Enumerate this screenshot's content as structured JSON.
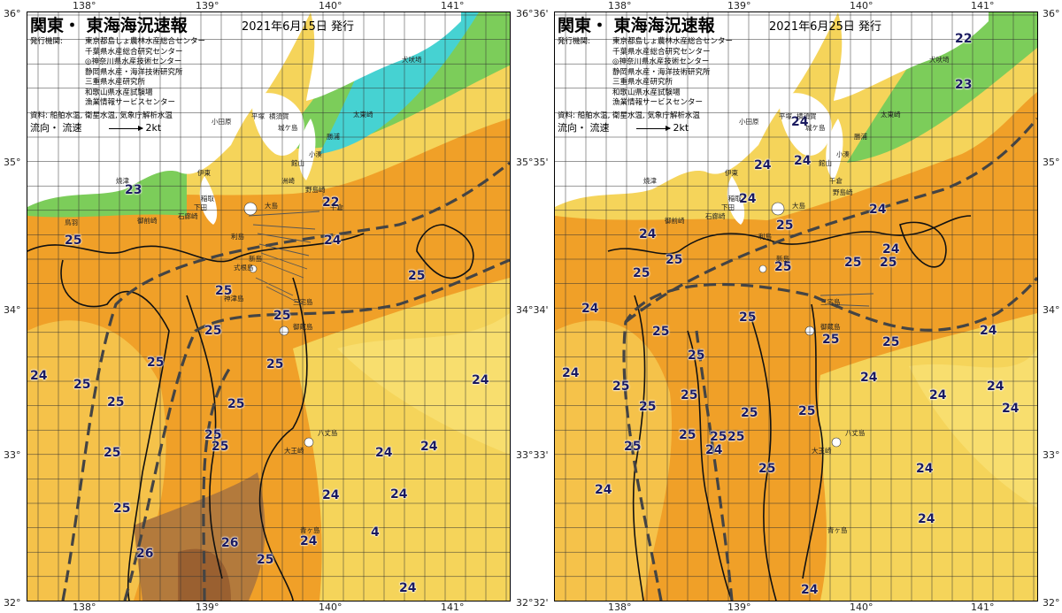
{
  "left": {
    "title": "関東・ 東海海況速報",
    "date": "2021年6月15日  発行",
    "issuers_label": "発行機関:",
    "issuers": [
      "東京都島しょ農林水産総合センター",
      "千葉県水産総合研究センター",
      "◎神奈川県水産技術センター",
      "静岡県水産・海洋技術研究所",
      "三重県水産研究所",
      "和歌山県水産試験場",
      "漁業情報サービスセンター"
    ],
    "sources": "資料: 船舶水温, 衛星水温, 気象庁解析水温",
    "legend": {
      "label": "流向・ 流速",
      "value": "2kt"
    },
    "lon_top": [
      "138°",
      "139°",
      "140°",
      "141°"
    ],
    "lon_bottom": [
      "138°",
      "139°",
      "140°",
      "141°"
    ],
    "lat_left": [
      "36°",
      "35°",
      "34°",
      "33°",
      "32°"
    ],
    "isotherms": [
      "23",
      "22",
      "24",
      "25",
      "25",
      "25",
      "25",
      "25",
      "25",
      "25",
      "24",
      "25",
      "25",
      "25",
      "25",
      "25",
      "24",
      "24",
      "24",
      "24",
      "24",
      "26",
      "26",
      "25",
      "25",
      "25",
      "24",
      "4",
      "24"
    ],
    "places": [
      "犬吠埼",
      "太東崎",
      "勝浦",
      "小湊",
      "館山",
      "洲崎",
      "野島崎",
      "平塚",
      "横須賀",
      "城ケ島",
      "大島",
      "利島",
      "新島",
      "式根島",
      "神津島",
      "三宅島",
      "御蔵島",
      "八丈島",
      "青ヶ島",
      "焼津",
      "御前崎",
      "伊東",
      "稲取",
      "下田",
      "石廊崎",
      "大王崎",
      "小田原",
      "千倉",
      "鳥羽"
    ]
  },
  "right": {
    "title": "関東・ 東海海況速報",
    "date": "2021年6月25日  発行",
    "issuers_label": "発行機関:",
    "issuers": [
      "東京都島しょ農林水産総合センター",
      "千葉県水産総合研究センター",
      "◎神奈川県水産技術センター",
      "静岡県水産・海洋技術研究所",
      "三重県水産研究所",
      "和歌山県水産試験場",
      "漁業情報サービスセンター"
    ],
    "sources": "資料: 船舶水温, 衛星水温, 気象庁解析水温",
    "legend": {
      "label": "流向・ 流速",
      "value": "2kt"
    },
    "lon_top": [
      "138°",
      "139°",
      "140°",
      "141°"
    ],
    "lon_bottom": [
      "138°",
      "139°",
      "140°",
      "141°"
    ],
    "lat_left": [
      "36°36'",
      "35°35'",
      "34°34'",
      "33°33'",
      "32°32'"
    ],
    "lat_right": [
      "36°",
      "35°",
      "34°",
      "33°",
      "32°"
    ],
    "isotherms": [
      "22",
      "23",
      "24",
      "24",
      "24",
      "24",
      "24",
      "25",
      "24",
      "24",
      "25",
      "25",
      "25",
      "25",
      "25",
      "25",
      "24",
      "25",
      "24",
      "25",
      "25",
      "25",
      "25",
      "25",
      "25",
      "25",
      "25",
      "25",
      "25",
      "25",
      "25",
      "25",
      "24",
      "24",
      "24",
      "24",
      "24",
      "24",
      "24",
      "24",
      "24",
      "24"
    ],
    "places": [
      "犬吠埼",
      "太東崎",
      "勝浦",
      "小湊",
      "館山",
      "千倉",
      "野島崎",
      "平塚",
      "横須賀",
      "城ケ島",
      "大島",
      "利島",
      "新島",
      "三宅島",
      "御蔵島",
      "八丈島",
      "青ヶ島",
      "焼津",
      "御前崎",
      "伊東",
      "稲取",
      "下田",
      "石廊崎",
      "大王崎",
      "小田原"
    ]
  },
  "colors": {
    "t22": "#46d2d2",
    "t23": "#7ccd5a",
    "t24": "#f5d45a",
    "t25": "#f0a028",
    "t26": "#b37a3c",
    "land": "#ffffff",
    "grid": "#333333",
    "current": "#2a2a2a"
  }
}
